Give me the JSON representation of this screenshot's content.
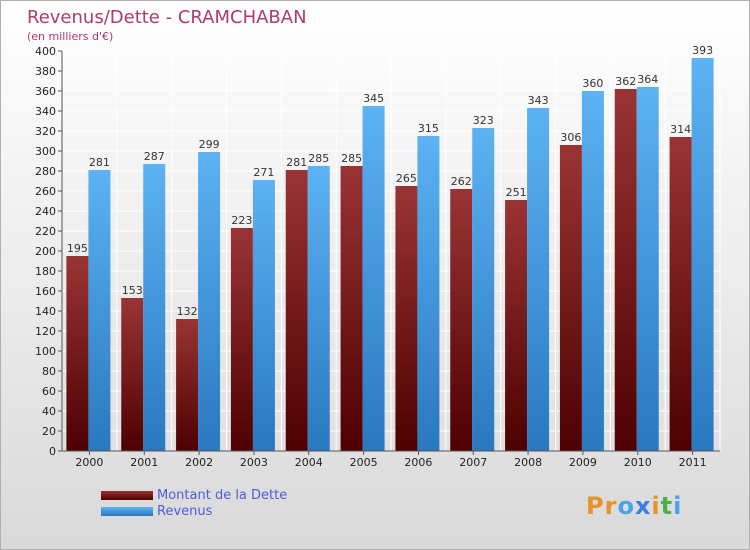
{
  "chart_data": {
    "type": "bar",
    "title": "Revenus/Dette - CRAMCHABAN",
    "subtitle": "(en milliers d'€)",
    "categories": [
      "2000",
      "2001",
      "2002",
      "2003",
      "2004",
      "2005",
      "2006",
      "2007",
      "2008",
      "2009",
      "2010",
      "2011"
    ],
    "series": [
      {
        "name": "Montant de la Dette",
        "color": "#7a1818",
        "values": [
          195,
          153,
          132,
          223,
          281,
          285,
          265,
          262,
          251,
          306,
          362,
          314
        ]
      },
      {
        "name": "Revenus",
        "color": "#4aa3e8",
        "values": [
          281,
          287,
          299,
          271,
          285,
          345,
          315,
          323,
          343,
          360,
          364,
          393
        ]
      }
    ],
    "ylim": [
      0,
      400
    ],
    "ytick_step": 20,
    "grid": true,
    "legend": "bottom-left"
  },
  "logo": {
    "text": "Proxiti",
    "colors": [
      "#e8932a",
      "#e8932a",
      "#4aa3e8",
      "#3b7de0",
      "#e8932a",
      "#4ab04a",
      "#4aa3e8"
    ]
  }
}
